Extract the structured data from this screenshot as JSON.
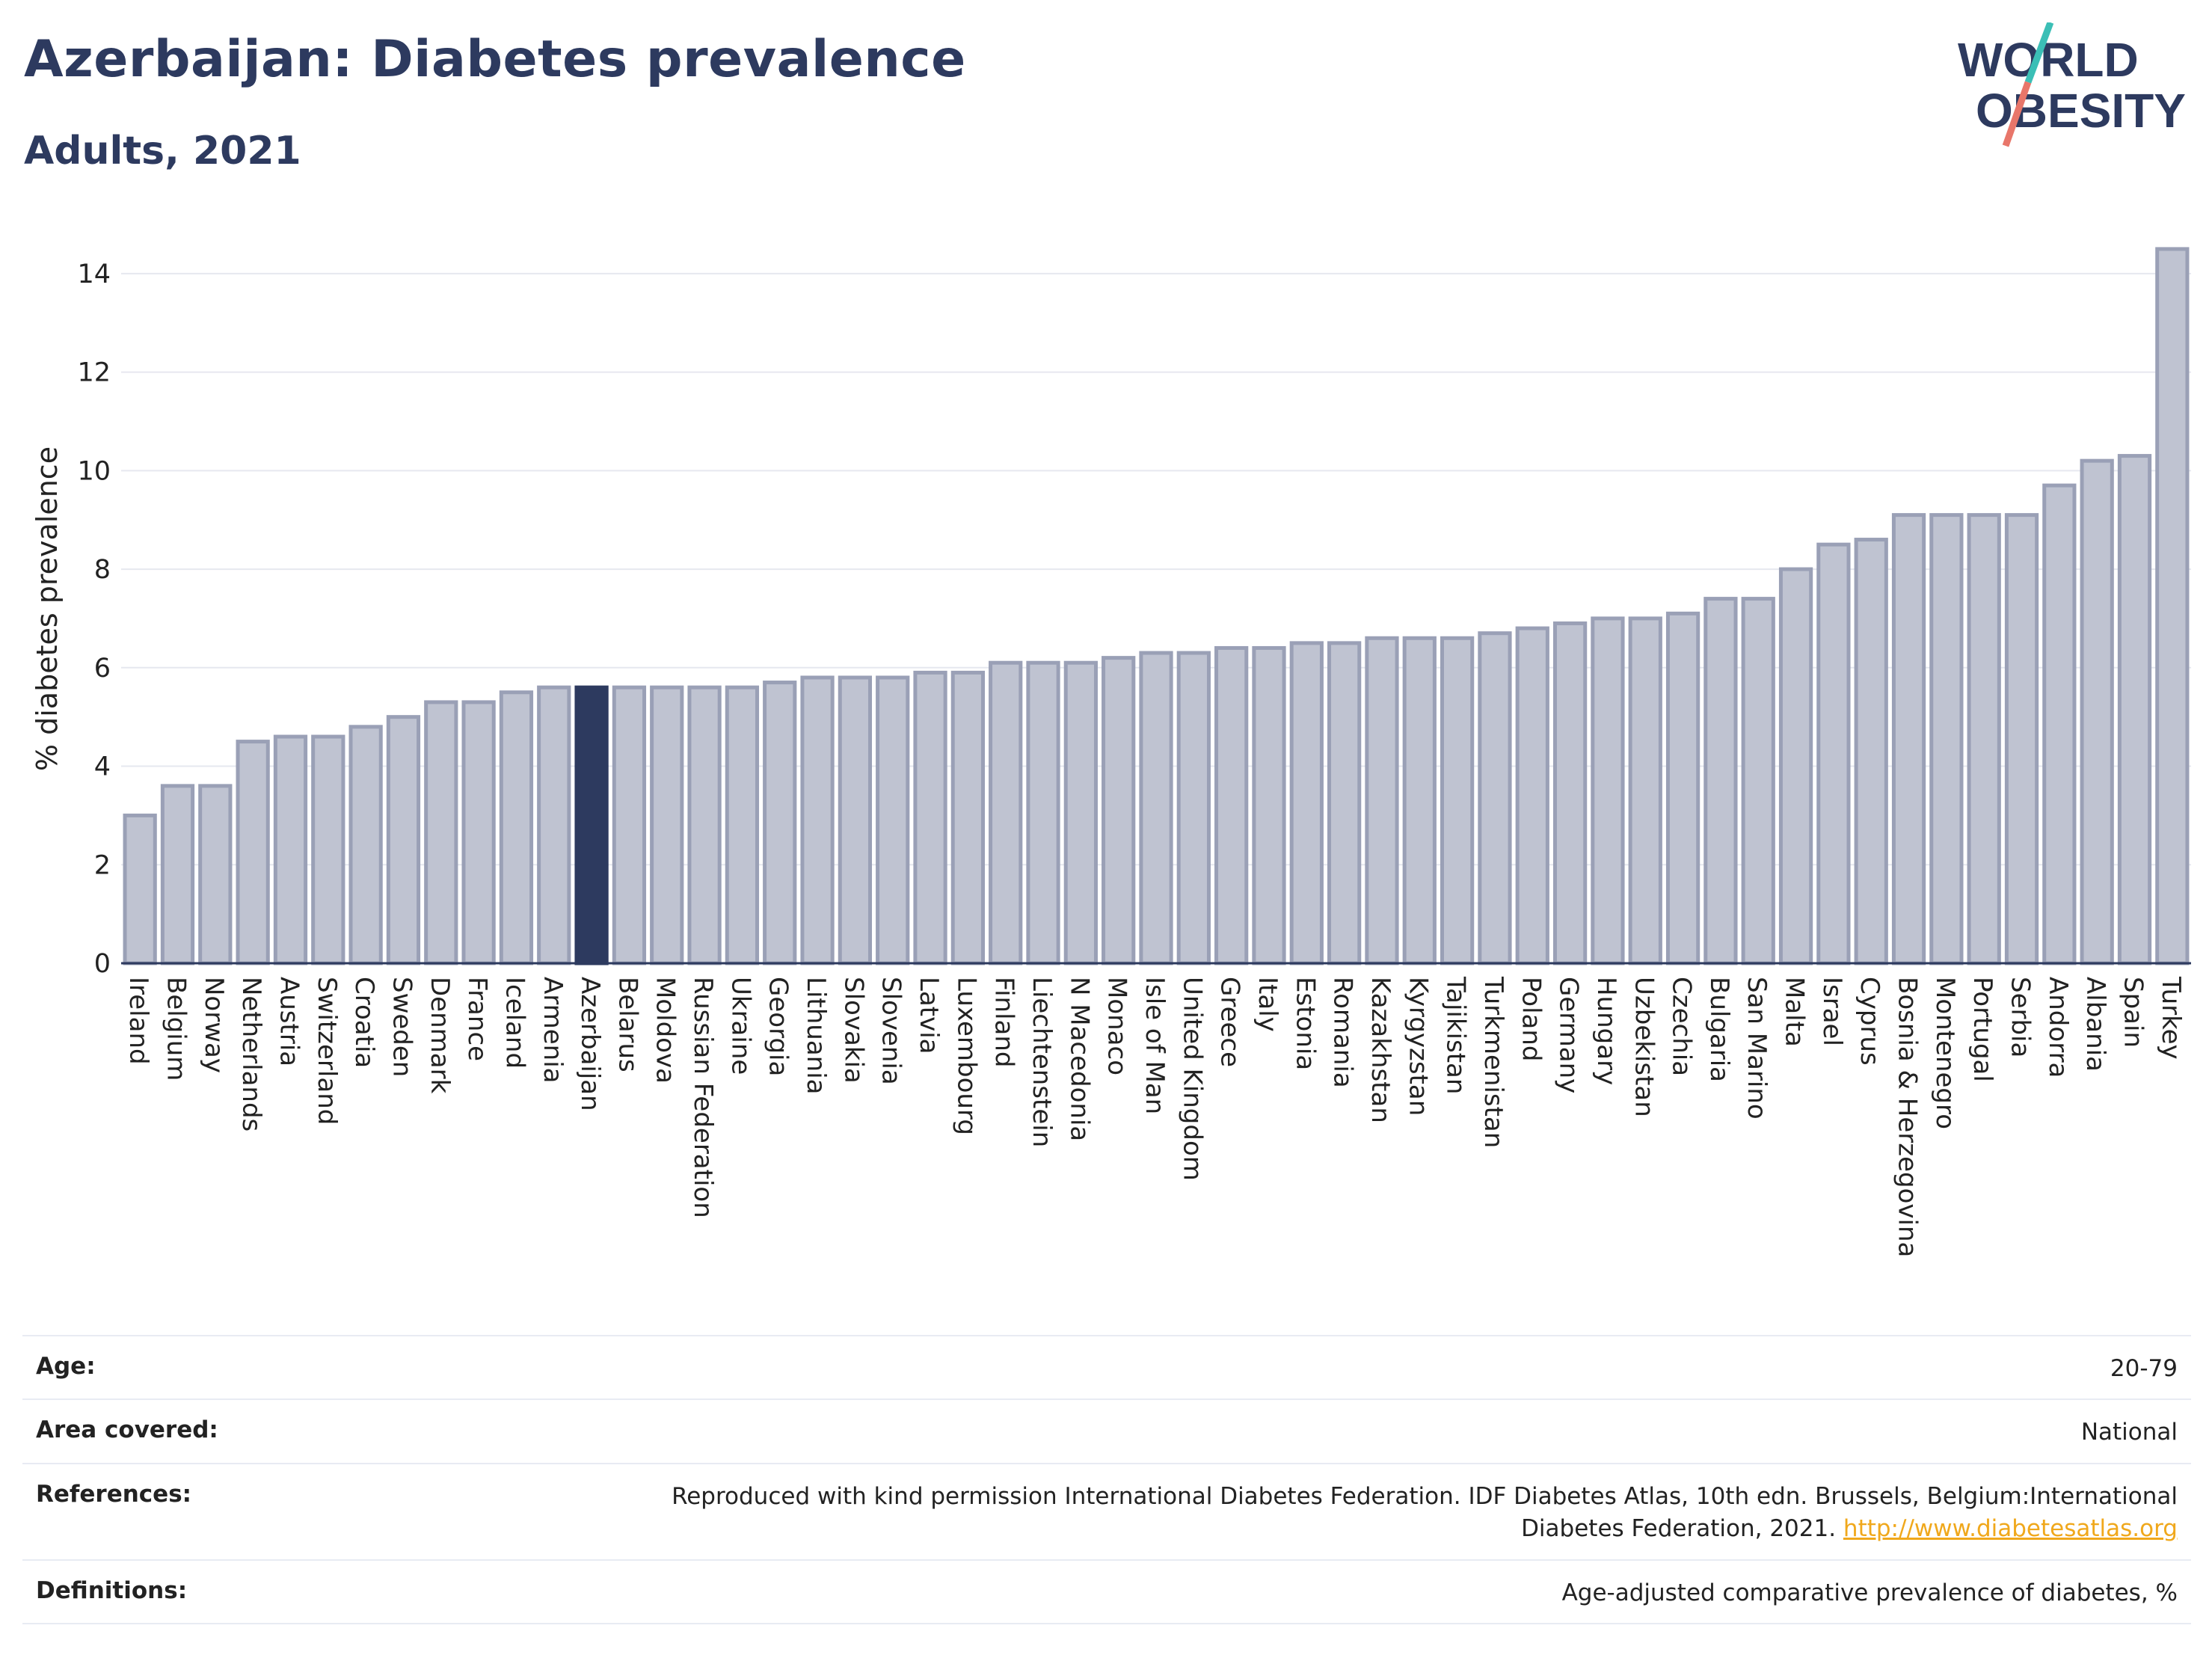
{
  "title": "Azerbaijan: Diabetes prevalence",
  "subtitle": "Adults, 2021",
  "logo": {
    "line1": "WORLD",
    "line2": "OBESITY",
    "slash_color_top": "#3bbfb6",
    "slash_color_bottom": "#e8766a"
  },
  "colors": {
    "bar": "#bfc3d1",
    "bar_border": "#9aa0b6",
    "highlight": "#2d3a5f",
    "text": "#2d3a5f",
    "link": "#f0a81c"
  },
  "chart_data": {
    "type": "bar",
    "ylabel": "% diabetes prevalence",
    "ylim": [
      0,
      15
    ],
    "yticks": [
      0,
      2,
      4,
      6,
      8,
      10,
      12,
      14
    ],
    "grid": true,
    "highlight": "Azerbaijan",
    "categories": [
      "Ireland",
      "Belgium",
      "Norway",
      "Netherlands",
      "Austria",
      "Switzerland",
      "Croatia",
      "Sweden",
      "Denmark",
      "France",
      "Iceland",
      "Armenia",
      "Azerbaijan",
      "Belarus",
      "Moldova",
      "Russian Federation",
      "Ukraine",
      "Georgia",
      "Lithuania",
      "Slovakia",
      "Slovenia",
      "Latvia",
      "Luxembourg",
      "Finland",
      "Liechtenstein",
      "N Macedonia",
      "Monaco",
      "Isle of Man",
      "United Kingdom",
      "Greece",
      "Italy",
      "Estonia",
      "Romania",
      "Kazakhstan",
      "Kyrgyzstan",
      "Tajikistan",
      "Turkmenistan",
      "Poland",
      "Germany",
      "Hungary",
      "Uzbekistan",
      "Czechia",
      "Bulgaria",
      "San Marino",
      "Malta",
      "Israel",
      "Cyprus",
      "Bosnia & Herzegovina",
      "Montenegro",
      "Portugal",
      "Serbia",
      "Andorra",
      "Albania",
      "Spain",
      "Turkey"
    ],
    "values": [
      3.0,
      3.6,
      3.6,
      4.5,
      4.6,
      4.6,
      4.8,
      5.0,
      5.3,
      5.3,
      5.5,
      5.6,
      5.6,
      5.6,
      5.6,
      5.6,
      5.6,
      5.7,
      5.8,
      5.8,
      5.8,
      5.9,
      5.9,
      6.1,
      6.1,
      6.1,
      6.2,
      6.3,
      6.3,
      6.4,
      6.4,
      6.5,
      6.5,
      6.6,
      6.6,
      6.6,
      6.7,
      6.8,
      6.9,
      7.0,
      7.0,
      7.1,
      7.4,
      7.4,
      8.0,
      8.5,
      8.6,
      9.1,
      9.1,
      9.1,
      9.1,
      9.7,
      10.2,
      10.3,
      14.5
    ]
  },
  "meta": {
    "age_label": "Age:",
    "age_value": "20-79",
    "area_label": "Area covered:",
    "area_value": "National",
    "references_label": "References:",
    "references_value": "Reproduced with kind permission International Diabetes Federation.  IDF Diabetes Atlas, 10th edn. Brussels, Belgium:International Diabetes Federation, 2021.",
    "references_link": "http://www.diabetesatlas.org",
    "definitions_label": "Definitions:",
    "definitions_value": "Age-adjusted comparative prevalence of diabetes, %"
  }
}
